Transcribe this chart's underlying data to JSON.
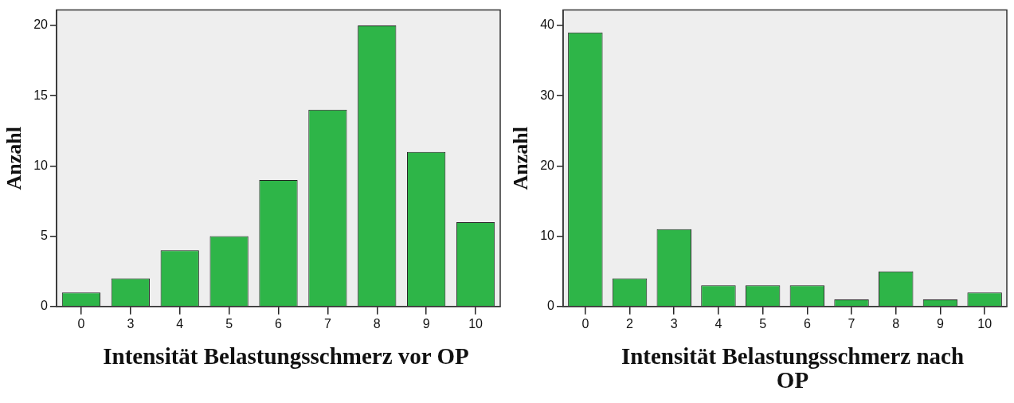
{
  "chart_data": [
    {
      "type": "bar",
      "xlabel": "Intensität Belastungsschmerz vor OP",
      "ylabel": "Anzahl",
      "categories": [
        "0",
        "3",
        "4",
        "5",
        "6",
        "7",
        "8",
        "9",
        "10"
      ],
      "color": "#2eb548",
      "values": [
        1,
        2,
        4,
        5,
        9,
        14,
        20,
        11,
        6
      ],
      "ylim": [
        0,
        21.1
      ],
      "yticks": [
        0,
        5,
        10,
        15,
        20
      ]
    },
    {
      "type": "bar",
      "xlabel": "Intensität Belastungsschmerz nach OP",
      "ylabel": "Anzahl",
      "categories": [
        "0",
        "2",
        "3",
        "4",
        "5",
        "6",
        "7",
        "8",
        "9",
        "10"
      ],
      "color": "#2eb548",
      "values": [
        39,
        4,
        11,
        3,
        3,
        3,
        1,
        5,
        1,
        2
      ],
      "ylim": [
        0,
        42.2
      ],
      "yticks": [
        0,
        10,
        20,
        30,
        40
      ]
    }
  ]
}
